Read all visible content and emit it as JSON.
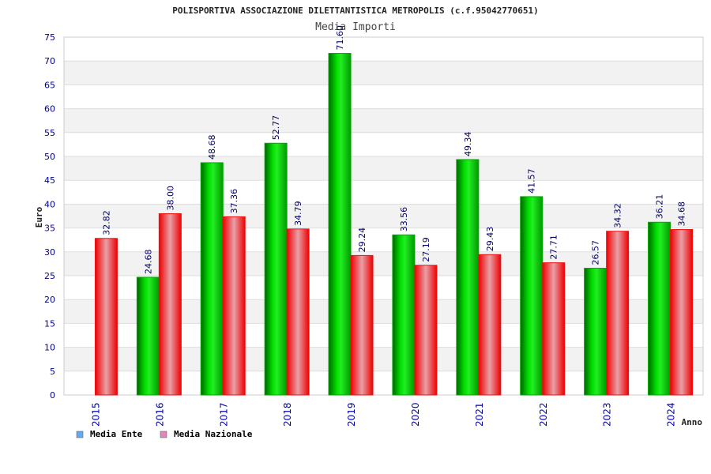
{
  "chart_data": {
    "type": "bar",
    "title": "POLISPORTIVA ASSOCIAZIONE DILETTANTISTICA METROPOLIS (c.f.95042770651)",
    "subtitle": "Media Importi",
    "xlabel": "Anno",
    "ylabel": "Euro",
    "ylim": [
      0,
      75
    ],
    "ytick_step": 5,
    "grid": true,
    "legend_position": "bottom-left",
    "categories": [
      "2015",
      "2016",
      "2017",
      "2018",
      "2019",
      "2020",
      "2021",
      "2022",
      "2023",
      "2024"
    ],
    "series": [
      {
        "name": "Media Ente",
        "color": "#00aa00",
        "legend_color": "#66aaee",
        "values": [
          null,
          24.68,
          48.68,
          52.77,
          71.6,
          33.56,
          49.34,
          41.57,
          26.57,
          36.21
        ],
        "labels": [
          "",
          "24.68",
          "48.68",
          "52.77",
          "71.60",
          "33.56",
          "49.34",
          "41.57",
          "26.57",
          "36.21"
        ]
      },
      {
        "name": "Media Nazionale",
        "color": "#ee1111",
        "legend_color": "#dd88bb",
        "values": [
          32.82,
          38.0,
          37.36,
          34.79,
          29.24,
          27.19,
          29.43,
          27.71,
          34.32,
          34.68
        ],
        "labels": [
          "32.82",
          "38.00",
          "37.36",
          "34.79",
          "29.24",
          "27.19",
          "29.43",
          "27.71",
          "34.32",
          "34.68"
        ]
      }
    ]
  }
}
